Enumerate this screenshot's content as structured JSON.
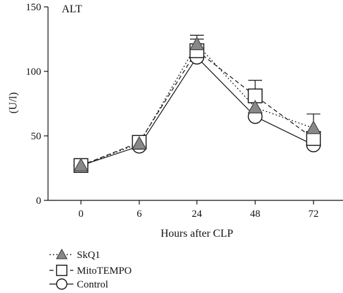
{
  "chart_data": {
    "type": "line",
    "panel_label": "ALT",
    "xlabel": "Hours after CLP",
    "ylabel": "(U/l)",
    "x": [
      0,
      6,
      24,
      48,
      72
    ],
    "x_tick_labels": [
      "0",
      "6",
      "24",
      "48",
      "72"
    ],
    "ylim": [
      0,
      150
    ],
    "y_ticks": [
      0,
      50,
      100,
      150
    ],
    "y_tick_labels": [
      "0",
      "50",
      "100",
      "150"
    ],
    "grid": false,
    "legend_position": "bottom-left",
    "series": [
      {
        "name": "SkQ1",
        "marker": "triangle",
        "line_style": "dotted",
        "color": "#888888",
        "values": [
          27,
          44,
          121,
          72,
          56
        ],
        "error_upper": [
          null,
          null,
          128,
          null,
          67
        ]
      },
      {
        "name": "MitoTEMPO",
        "marker": "square",
        "line_style": "dashed",
        "color": "#ffffff",
        "values": [
          27,
          45,
          116,
          81,
          48
        ],
        "error_upper": [
          null,
          null,
          125,
          93,
          null
        ]
      },
      {
        "name": "Control",
        "marker": "circle",
        "line_style": "solid",
        "color": "#ffffff",
        "values": [
          27,
          42,
          111,
          65,
          43
        ],
        "error_upper": [
          null,
          null,
          null,
          null,
          null
        ]
      }
    ]
  }
}
